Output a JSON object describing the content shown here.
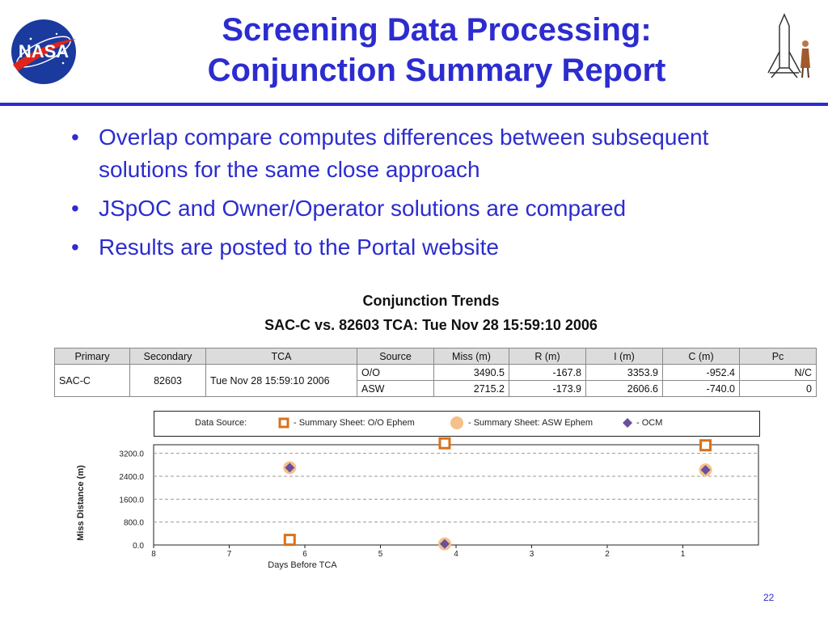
{
  "header": {
    "title_line1": "Screening Data Processing:",
    "title_line2": "Conjunction Summary Report",
    "logo_icon": "nasa-meatball-logo",
    "right_icon": "rocket-with-person-icon"
  },
  "bullets": [
    {
      "text": "Overlap compare computes differences between subsequent solutions for the same close approach"
    },
    {
      "text": "JSpOC and Owner/Operator solutions are compared"
    },
    {
      "text": "Results are posted to the Portal website"
    }
  ],
  "report": {
    "title": "Conjunction Trends",
    "subtitle": "SAC-C vs. 82603 TCA: Tue Nov 28 15:59:10 2006",
    "columns": [
      "Primary",
      "Secondary",
      "TCA",
      "Source",
      "Miss (m)",
      "R (m)",
      "I (m)",
      "C (m)",
      "Pc"
    ],
    "primary": "SAC-C",
    "secondary": "82603",
    "tca": "Tue Nov 28 15:59:10 2006",
    "rows": [
      {
        "source": "O/O",
        "miss": "3490.5",
        "r": "-167.8",
        "i": "3353.9",
        "c": "-952.4",
        "pc": "N/C"
      },
      {
        "source": "ASW",
        "miss": "2715.2",
        "r": "-173.9",
        "i": "2606.6",
        "c": "-740.0",
        "pc": "0"
      }
    ]
  },
  "legend": {
    "label": "Data Source:",
    "oo": "- Summary Sheet: O/O Ephem",
    "asw": "- Summary Sheet: ASW Ephem",
    "ocm": "- OCM"
  },
  "chart_data": {
    "type": "scatter",
    "xlabel": "Days Before TCA",
    "ylabel": "Miss Distance (m)",
    "xlim": [
      8,
      0
    ],
    "ylim": [
      0,
      3500
    ],
    "x_ticks": [
      "8",
      "7",
      "6",
      "5",
      "4",
      "3",
      "2",
      "1"
    ],
    "y_ticks": [
      "0.0",
      "800.0",
      "1600.0",
      "2400.0",
      "3200.0"
    ],
    "grid": "horizontal dashed",
    "colors": {
      "oo": "#d9711c",
      "asw": "#f5c089",
      "ocm": "#6a4f9e"
    },
    "series": [
      {
        "key": "oo",
        "name": "- Summary Sheet: O/O Ephem",
        "marker": "square",
        "points": [
          {
            "x": 6.2,
            "y": 180
          },
          {
            "x": 4.15,
            "y": 3550
          },
          {
            "x": 0.7,
            "y": 3480
          }
        ]
      },
      {
        "key": "asw",
        "name": "- Summary Sheet: ASW Ephem",
        "marker": "circle",
        "points": [
          {
            "x": 6.2,
            "y": 2700
          },
          {
            "x": 4.15,
            "y": 40
          },
          {
            "x": 0.7,
            "y": 2620
          }
        ]
      },
      {
        "key": "ocm",
        "name": "- OCM",
        "marker": "diamond",
        "points": [
          {
            "x": 6.2,
            "y": 2700
          },
          {
            "x": 4.15,
            "y": 40
          },
          {
            "x": 0.7,
            "y": 2620
          }
        ]
      }
    ]
  },
  "footer": {
    "page_number": "22"
  }
}
